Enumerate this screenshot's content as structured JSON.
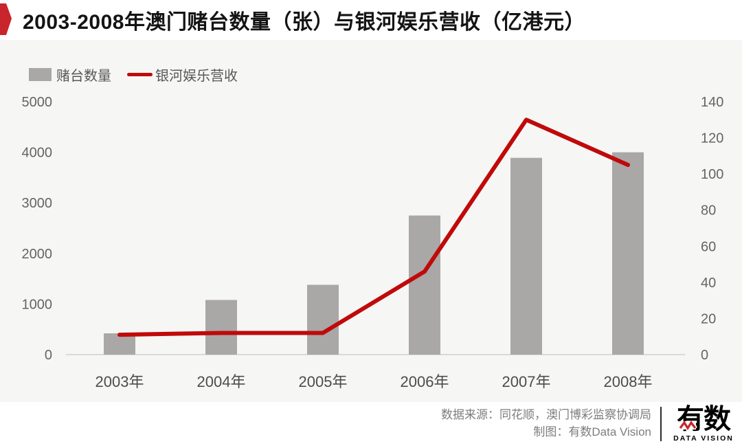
{
  "title": "2003-2008年澳门赌台数量（张）与银河娱乐营收（亿港元）",
  "legend": {
    "bar_label": "赌台数量",
    "line_label": "银河娱乐营收"
  },
  "colors": {
    "accent_red": "#c9252c",
    "line_red": "#c00a0a",
    "bar_gray": "#aaa7a7",
    "chart_bg": "#f6f6f5",
    "axis_line": "#d9d9d9"
  },
  "chart_data": {
    "type": "bar",
    "title": "2003-2008年澳门赌台数量（张）与银河娱乐营收（亿港元）",
    "categories": [
      "2003年",
      "2004年",
      "2005年",
      "2006年",
      "2007年",
      "2008年"
    ],
    "series": [
      {
        "name": "赌台数量",
        "type": "bar",
        "axis": "left",
        "unit": "张",
        "values": [
          420,
          1080,
          1380,
          2750,
          3890,
          4000
        ]
      },
      {
        "name": "银河娱乐营收",
        "type": "line",
        "axis": "right",
        "unit": "亿港元",
        "values": [
          11,
          12,
          12,
          46,
          130,
          105
        ]
      }
    ],
    "left_axis": {
      "min": 0,
      "max": 5000,
      "ticks": [
        0,
        1000,
        2000,
        3000,
        4000,
        5000
      ]
    },
    "right_axis": {
      "min": 0,
      "max": 140,
      "ticks": [
        0,
        20,
        40,
        60,
        80,
        100,
        120,
        140
      ]
    },
    "grid": false,
    "legend_position": "top-left"
  },
  "footer": {
    "source_line": "数据来源：同花顺，澳门博彩监察协调局",
    "credit_line": "制图：有数Data Vision",
    "logo_text": "有数",
    "logo_subtext": "DATA VISION"
  }
}
